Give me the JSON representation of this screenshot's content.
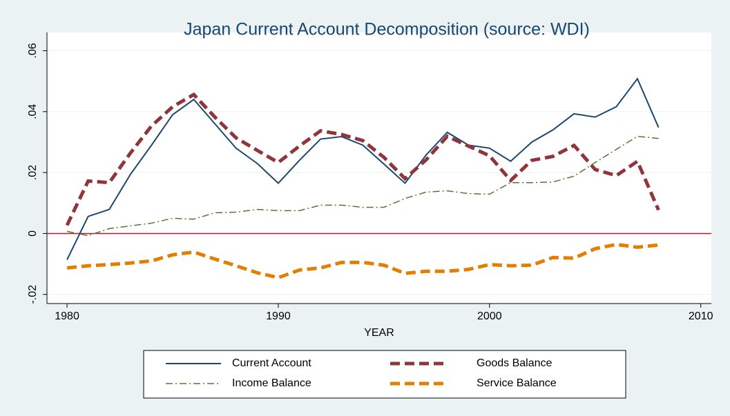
{
  "chart_data": {
    "type": "line",
    "title": "Japan Current Account Decomposition (source: WDI)",
    "x_label": "YEAR",
    "x": [
      1980,
      1981,
      1982,
      1983,
      1984,
      1985,
      1986,
      1987,
      1988,
      1989,
      1990,
      1991,
      1992,
      1993,
      1994,
      1995,
      1996,
      1997,
      1998,
      1999,
      2000,
      2001,
      2002,
      2003,
      2004,
      2005,
      2006,
      2007,
      2008
    ],
    "series": [
      {
        "name": "Current Account",
        "color": "#1a476f",
        "style": "solid",
        "width": 2,
        "values": [
          -0.0086,
          0.0056,
          0.0079,
          0.0194,
          0.029,
          0.039,
          0.044,
          0.036,
          0.028,
          0.023,
          0.0165,
          0.024,
          0.031,
          0.0318,
          0.029,
          0.0228,
          0.0165,
          0.0258,
          0.0332,
          0.029,
          0.028,
          0.0237,
          0.03,
          0.034,
          0.0393,
          0.0382,
          0.0416,
          0.0508,
          0.0348
        ]
      },
      {
        "name": "Goods Balance",
        "color": "#90353b",
        "style": "dash",
        "width": 5,
        "values": [
          0.0027,
          0.0172,
          0.0167,
          0.0264,
          0.0353,
          0.0416,
          0.0456,
          0.0382,
          0.0314,
          0.0273,
          0.0233,
          0.0287,
          0.0337,
          0.0325,
          0.0305,
          0.025,
          0.018,
          0.0242,
          0.0319,
          0.0287,
          0.0255,
          0.0174,
          0.024,
          0.0253,
          0.0289,
          0.021,
          0.019,
          0.0237,
          0.0077
        ]
      },
      {
        "name": "Income Balance",
        "color": "#55752f",
        "style": "dashdot",
        "width": 1.5,
        "values": [
          0.0007,
          -0.0007,
          0.0016,
          0.0025,
          0.0034,
          0.005,
          0.0047,
          0.0068,
          0.007,
          0.0079,
          0.0075,
          0.0075,
          0.0093,
          0.0093,
          0.0086,
          0.0086,
          0.0115,
          0.0136,
          0.014,
          0.0131,
          0.0129,
          0.0167,
          0.0167,
          0.0169,
          0.0188,
          0.0233,
          0.0276,
          0.0319,
          0.0312
        ]
      },
      {
        "name": "Service Balance",
        "color": "#e37e00",
        "style": "dash",
        "width": 5,
        "values": [
          -0.0113,
          -0.0106,
          -0.0102,
          -0.0097,
          -0.009,
          -0.007,
          -0.0061,
          -0.0084,
          -0.0106,
          -0.0129,
          -0.0145,
          -0.012,
          -0.0113,
          -0.0095,
          -0.0095,
          -0.0104,
          -0.0131,
          -0.0124,
          -0.0124,
          -0.0118,
          -0.0102,
          -0.0106,
          -0.0104,
          -0.0079,
          -0.0081,
          -0.005,
          -0.0036,
          -0.0045,
          -0.0038
        ]
      }
    ],
    "xlim": [
      1979.05,
      2010.5
    ],
    "xticks": [
      1980,
      1990,
      2000,
      2010
    ],
    "ylim": [
      -0.023,
      0.066
    ],
    "yticks": [
      {
        "value": -0.02,
        "label": "-.02"
      },
      0,
      {
        "value": 0.02,
        "label": ".02"
      },
      {
        "value": 0.04,
        "label": ".04"
      },
      {
        "value": 0.06,
        "label": ".06"
      }
    ],
    "grid": true,
    "reference_line": {
      "value": 0,
      "color": "#c3102f"
    },
    "legend": "bottom"
  }
}
